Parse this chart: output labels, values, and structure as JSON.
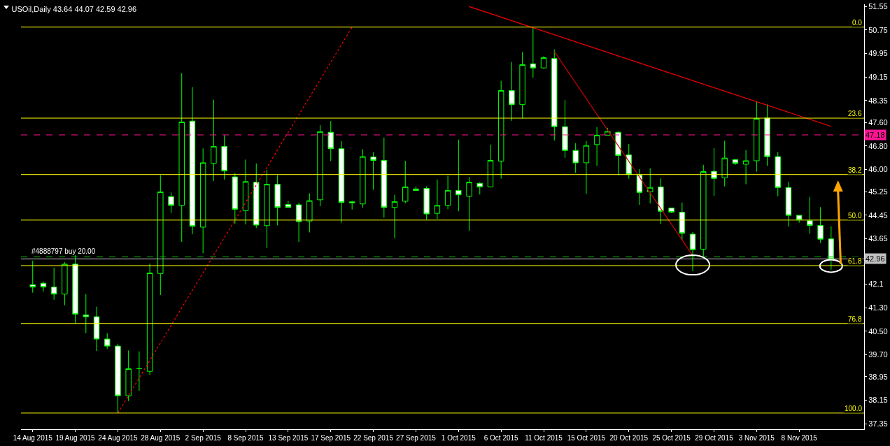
{
  "chart_data": {
    "type": "candlestick",
    "title": "USOil,Daily 43.64 44.07 42.59 42.96",
    "categories": [
      "14 Aug 2015",
      null,
      null,
      null,
      "19 Aug 2015",
      null,
      null,
      null,
      "24 Aug 2015",
      null,
      null,
      null,
      "28 Aug 2015",
      null,
      null,
      null,
      "2 Sep 2015",
      null,
      null,
      null,
      "8 Sep 2015",
      null,
      null,
      null,
      "13 Sep 2015",
      null,
      null,
      null,
      "17 Sep 2015",
      null,
      null,
      null,
      "22 Sep 2015",
      null,
      null,
      null,
      "27 Sep 2015",
      null,
      null,
      null,
      "1 Oct 2015",
      null,
      null,
      null,
      "6 Oct 2015",
      null,
      null,
      null,
      "11 Oct 2015",
      null,
      null,
      null,
      "15 Oct 2015",
      null,
      null,
      null,
      "20 Oct 2015",
      null,
      null,
      null,
      "25 Oct 2015",
      null,
      null,
      null,
      "29 Oct 2015",
      null,
      null,
      null,
      "3 Nov 2015",
      null,
      null,
      null,
      "8 Nov 2015",
      null,
      null,
      null
    ],
    "series": [
      {
        "type": "line",
        "color": "#ff0000",
        "line_style": "dotted",
        "values": [
          null,
          null,
          null,
          null,
          null,
          null,
          null,
          null,
          37.71,
          null,
          null,
          null,
          null,
          null,
          null,
          null,
          null,
          null,
          null,
          null,
          null,
          null,
          null,
          null,
          null,
          null,
          null,
          null,
          null,
          null,
          50.85,
          null,
          null,
          null,
          null,
          null,
          null,
          null,
          null,
          null,
          null,
          null,
          null,
          null,
          null,
          null,
          null,
          null,
          null,
          null,
          null,
          null,
          null,
          null,
          null,
          null,
          null,
          null,
          null,
          null,
          null,
          null,
          null,
          null,
          null,
          null,
          null,
          null,
          null,
          null,
          null,
          null,
          null,
          null,
          null,
          null
        ]
      },
      {
        "type": "line",
        "color": "#ff0000",
        "line_style": "solid",
        "values": [
          null,
          null,
          null,
          null,
          null,
          null,
          null,
          null,
          null,
          null,
          null,
          null,
          null,
          null,
          null,
          null,
          null,
          null,
          null,
          null,
          null,
          null,
          null,
          null,
          null,
          null,
          null,
          null,
          null,
          null,
          null,
          null,
          null,
          null,
          null,
          null,
          null,
          null,
          null,
          null,
          null,
          51.55,
          null,
          null,
          null,
          null,
          null,
          null,
          null,
          null,
          null,
          null,
          null,
          null,
          null,
          null,
          null,
          null,
          null,
          null,
          null,
          null,
          null,
          null,
          null,
          null,
          null,
          null,
          null,
          null,
          null,
          null,
          null,
          null,
          null,
          47.47
        ]
      },
      {
        "type": "line",
        "color": "#cc0000",
        "line_style": "solid",
        "values": [
          null,
          null,
          null,
          null,
          null,
          null,
          null,
          null,
          null,
          null,
          null,
          null,
          null,
          null,
          null,
          null,
          null,
          null,
          null,
          null,
          null,
          null,
          null,
          null,
          null,
          null,
          null,
          null,
          null,
          null,
          null,
          null,
          null,
          null,
          null,
          null,
          null,
          null,
          null,
          null,
          null,
          null,
          null,
          null,
          null,
          null,
          null,
          null,
          null,
          50.02,
          null,
          null,
          null,
          null,
          null,
          null,
          null,
          null,
          null,
          null,
          null,
          null,
          43.07,
          null,
          null,
          null,
          null,
          null,
          null,
          null,
          null,
          null,
          null,
          null,
          null,
          null
        ]
      },
      {
        "color": "#00ff00",
        "ohlc": [
          [
            42.08,
            42.9,
            41.81,
            42.0
          ],
          [
            42.13,
            42.19,
            41.85,
            42.0
          ],
          [
            42.0,
            42.66,
            41.57,
            41.76
          ],
          [
            41.76,
            42.85,
            41.38,
            42.78
          ],
          [
            42.78,
            43.09,
            40.75,
            41.08
          ],
          [
            41.05,
            41.76,
            40.43,
            40.99
          ],
          [
            40.99,
            41.33,
            39.82,
            40.23
          ],
          [
            40.23,
            40.43,
            39.89,
            39.99
          ],
          [
            39.99,
            40.07,
            37.71,
            38.3
          ],
          [
            38.3,
            39.84,
            38.12,
            39.22
          ],
          [
            39.22,
            39.81,
            38.47,
            39.22
          ],
          [
            39.13,
            42.8,
            39.01,
            42.48
          ],
          [
            42.46,
            45.81,
            41.73,
            45.24
          ],
          [
            45.08,
            45.22,
            44.52,
            44.78
          ],
          [
            44.78,
            49.28,
            43.54,
            47.62
          ],
          [
            47.65,
            48.81,
            43.8,
            44.07
          ],
          [
            44.04,
            46.72,
            43.15,
            46.23
          ],
          [
            46.21,
            48.38,
            45.61,
            46.79
          ],
          [
            46.79,
            47.17,
            45.66,
            45.95
          ],
          [
            45.75,
            45.88,
            44.15,
            44.65
          ],
          [
            44.6,
            46.34,
            44.13,
            45.59
          ],
          [
            45.57,
            46.21,
            44.01,
            44.11
          ],
          [
            44.09,
            45.99,
            43.33,
            45.5
          ],
          [
            45.5,
            45.81,
            44.1,
            44.71
          ],
          [
            44.81,
            44.93,
            44.71,
            44.71
          ],
          [
            44.8,
            44.87,
            43.54,
            44.23
          ],
          [
            44.25,
            45.19,
            43.86,
            44.94
          ],
          [
            44.97,
            47.51,
            44.75,
            47.29
          ],
          [
            47.27,
            47.65,
            46.29,
            46.71
          ],
          [
            46.71,
            46.97,
            44.19,
            44.88
          ],
          [
            44.9,
            44.94,
            44.64,
            44.87
          ],
          [
            44.83,
            46.69,
            44.7,
            46.44
          ],
          [
            46.43,
            46.59,
            45.31,
            46.31
          ],
          [
            46.31,
            47.09,
            44.36,
            44.71
          ],
          [
            44.71,
            45.14,
            43.66,
            44.91
          ],
          [
            44.92,
            46.3,
            44.85,
            45.41
          ],
          [
            45.34,
            45.43,
            45.29,
            45.29
          ],
          [
            45.36,
            45.43,
            44.3,
            44.49
          ],
          [
            44.51,
            45.66,
            44.32,
            44.78
          ],
          [
            44.78,
            45.79,
            44.65,
            45.29
          ],
          [
            45.29,
            47.02,
            44.58,
            45.14
          ],
          [
            45.09,
            45.75,
            43.92,
            45.57
          ],
          [
            45.53,
            45.57,
            45.15,
            45.41
          ],
          [
            45.41,
            46.85,
            45.41,
            46.31
          ],
          [
            46.29,
            49.02,
            45.69,
            48.69
          ],
          [
            48.69,
            49.66,
            47.66,
            48.21
          ],
          [
            48.21,
            50.0,
            47.74,
            49.57
          ],
          [
            49.6,
            50.83,
            49.13,
            49.46
          ],
          [
            49.46,
            49.86,
            49.43,
            49.81
          ],
          [
            49.78,
            50.09,
            46.99,
            47.46
          ],
          [
            47.46,
            48.37,
            46.4,
            46.65
          ],
          [
            46.65,
            46.9,
            45.89,
            46.23
          ],
          [
            46.23,
            46.97,
            45.17,
            46.82
          ],
          [
            46.85,
            47.44,
            46.13,
            47.17
          ],
          [
            47.17,
            47.42,
            47.17,
            47.3
          ],
          [
            47.27,
            47.3,
            45.81,
            46.48
          ],
          [
            46.5,
            46.87,
            45.69,
            45.83
          ],
          [
            45.81,
            46.02,
            44.8,
            45.22
          ],
          [
            45.24,
            46.05,
            44.85,
            45.39
          ],
          [
            45.41,
            45.7,
            44.15,
            44.58
          ],
          [
            44.69,
            44.69,
            44.52,
            44.55
          ],
          [
            44.55,
            44.88,
            43.59,
            43.83
          ],
          [
            43.8,
            43.87,
            42.54,
            43.27
          ],
          [
            43.29,
            46.16,
            43.04,
            45.93
          ],
          [
            45.94,
            46.73,
            45.1,
            45.7
          ],
          [
            45.72,
            46.98,
            45.43,
            46.39
          ],
          [
            46.34,
            46.37,
            46.16,
            46.21
          ],
          [
            46.18,
            46.66,
            45.5,
            46.3
          ],
          [
            46.3,
            48.33,
            45.93,
            47.74
          ],
          [
            47.76,
            48.22,
            46.13,
            46.44
          ],
          [
            46.44,
            46.6,
            45.09,
            45.39
          ],
          [
            45.39,
            45.58,
            44.06,
            44.44
          ],
          [
            44.44,
            44.44,
            44.19,
            44.29
          ],
          [
            44.26,
            45.07,
            43.81,
            44.1
          ],
          [
            44.1,
            44.72,
            43.5,
            43.63
          ],
          [
            43.64,
            44.07,
            42.59,
            42.96
          ]
        ]
      }
    ],
    "ylim": [
      37.16,
      51.63
    ],
    "yticks": [
      51.55,
      50.75,
      49.95,
      49.15,
      48.35,
      {
        "value": 47.6,
        "label": "47.60"
      },
      {
        "value": 46.8,
        "label": "46.80"
      },
      {
        "value": 46,
        "label": "46.00"
      },
      45.25,
      44.45,
      43.65,
      42.1,
      {
        "value": 41.3,
        "label": "41.30"
      },
      {
        "value": 40.5,
        "label": "40.50"
      },
      {
        "value": 39.7,
        "label": "39.70"
      },
      38.95,
      38.15,
      37.35
    ],
    "ref_lines": [
      {
        "axis": "y",
        "value": 50.85,
        "color": "#ffff00",
        "line_style": "solid"
      },
      {
        "axis": "y",
        "value": 47.75,
        "color": "#ffff00",
        "line_style": "solid"
      },
      {
        "axis": "y",
        "value": 45.83,
        "color": "#ffff00",
        "line_style": "solid"
      },
      {
        "axis": "y",
        "value": 44.28,
        "color": "#ffff00",
        "line_style": "solid"
      },
      {
        "axis": "y",
        "value": 42.73,
        "color": "#ffff00",
        "line_style": "solid"
      },
      {
        "axis": "y",
        "value": 40.76,
        "color": "#ffff00",
        "line_style": "solid"
      },
      {
        "axis": "y",
        "value": 37.71,
        "color": "#ffff00",
        "line_style": "solid"
      },
      {
        "axis": "y",
        "value": 47.18,
        "label": "47.18",
        "color": "#ff1493",
        "line_style": "dashed"
      },
      {
        "axis": "y",
        "value": 43.03,
        "color": "#00c000",
        "line_style": "dashed"
      },
      {
        "axis": "y",
        "value": 42.96,
        "label": "42.96",
        "color": "#c0c0c0",
        "line_style": "solid"
      }
    ],
    "annotations": [
      {
        "text": "#4888797 buy 20.00",
        "x": "14 Aug 2015",
        "y": 43.03
      },
      {
        "text": "0.0",
        "y": 50.85
      },
      {
        "text": "23.6",
        "y": 47.75
      },
      {
        "text": "38.2",
        "y": 45.83
      },
      {
        "text": "50.0",
        "y": 44.28
      },
      {
        "text": "61.8",
        "y": 42.73
      },
      {
        "text": "76.8",
        "y": 40.76
      },
      {
        "text": "100.0",
        "y": 37.71
      }
    ],
    "grid": false,
    "marker": "none"
  }
}
